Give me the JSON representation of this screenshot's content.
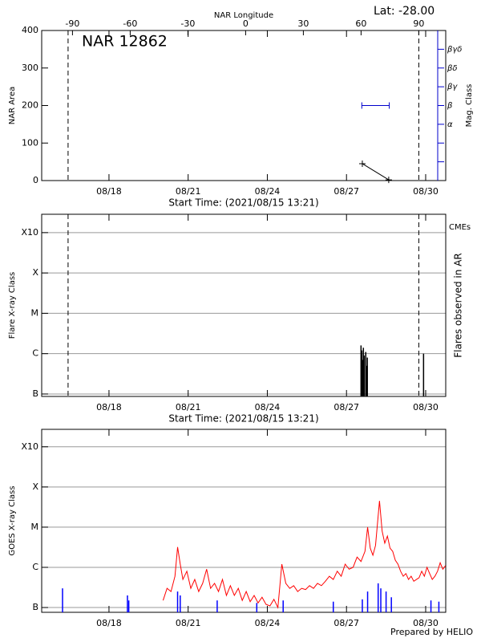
{
  "chart_data": [
    {
      "type": "line",
      "title": "NAR 12862",
      "annotation": "Lat: -28.00",
      "x2label": "NAR Longitude",
      "ylabel": "NAR Area",
      "y2label": "Mag. Class",
      "xlabel": "Start Time: (2021/08/15 13:21)",
      "xlim": [
        15.45,
        30.76
      ],
      "xticks": [
        {
          "value": 18,
          "label": "08/18"
        },
        {
          "value": 21,
          "label": "08/21"
        },
        {
          "value": 24,
          "label": "08/24"
        },
        {
          "value": 27,
          "label": "08/27"
        },
        {
          "value": 30,
          "label": "08/30"
        }
      ],
      "x2lim": [
        -106,
        104
      ],
      "x2ticks": [
        -90,
        -60,
        -30,
        0,
        30,
        60,
        90
      ],
      "ylim": [
        0,
        400
      ],
      "yticks": [
        0,
        100,
        200,
        300,
        400
      ],
      "y2lim": [
        0,
        8
      ],
      "y2color": "#0000cc",
      "y2ticks": [
        {
          "value": 1,
          "label": null
        },
        {
          "value": 2,
          "label": null
        },
        {
          "value": 3,
          "label": "α"
        },
        {
          "value": 4,
          "label": "β"
        },
        {
          "value": 5,
          "label": "βγ"
        },
        {
          "value": 6,
          "label": "βδ"
        },
        {
          "value": 7,
          "label": "βγδ"
        }
      ],
      "vlines": [
        16.45,
        29.74
      ],
      "series": [
        {
          "color": "#000000",
          "x": [
            27.6,
            28.6
          ],
          "values": [
            45,
            2
          ]
        },
        {
          "color": "#0000cc",
          "axis": "y2",
          "x": [
            27.58,
            28.62
          ],
          "values": [
            4,
            4
          ]
        }
      ]
    },
    {
      "type": "bar",
      "annotation": "CMEs",
      "annotation_color": "#ff0000",
      "ylabel": "Flare X-ray Class",
      "y2label": "Flares observed in AR",
      "xlabel": "Start Time: (2021/08/15 13:21)",
      "xlim": [
        15.45,
        30.76
      ],
      "xticks": [
        {
          "value": 18,
          "label": "08/18"
        },
        {
          "value": 21,
          "label": "08/21"
        },
        {
          "value": 24,
          "label": "08/24"
        },
        {
          "value": 27,
          "label": "08/27"
        },
        {
          "value": 30,
          "label": "08/30"
        }
      ],
      "log_y": true,
      "ylim": [
        8.7e-08,
        0.00285
      ],
      "yticks": [
        {
          "value": 1e-07,
          "label": "B"
        },
        {
          "value": 1e-06,
          "label": "C"
        },
        {
          "value": 1e-05,
          "label": "M"
        },
        {
          "value": 0.0001,
          "label": "X"
        },
        {
          "value": 0.001,
          "label": "X10"
        }
      ],
      "grid": true,
      "vlines": [
        16.45,
        29.74
      ],
      "color": "#000000",
      "x": [
        27.55,
        27.58,
        27.61,
        27.64,
        27.67,
        27.73,
        27.76,
        27.79,
        29.92
      ],
      "values": [
        1.6e-06,
        1.2e-06,
        7e-07,
        1.4e-06,
        9e-07,
        1.1e-06,
        5e-07,
        8e-07,
        1e-06
      ]
    },
    {
      "type": "line",
      "ylabel": "GOES X-ray Class",
      "note": "Prepared by HELIO",
      "xlim": [
        15.45,
        30.76
      ],
      "xticks": [
        {
          "value": 18,
          "label": "08/18"
        },
        {
          "value": 21,
          "label": "08/21"
        },
        {
          "value": 24,
          "label": "08/24"
        },
        {
          "value": 27,
          "label": "08/27"
        },
        {
          "value": 30,
          "label": "08/30"
        }
      ],
      "log_y": true,
      "ylim": [
        7.6e-08,
        0.00272
      ],
      "yticks": [
        {
          "value": 1e-07,
          "label": "B"
        },
        {
          "value": 1e-06,
          "label": "C"
        },
        {
          "value": 1e-05,
          "label": "M"
        },
        {
          "value": 0.0001,
          "label": "X"
        },
        {
          "value": 0.001,
          "label": "X10"
        }
      ],
      "grid": true,
      "series": [
        {
          "color": "#ff0000",
          "x": [
            20.05,
            20.2,
            20.35,
            20.5,
            20.6,
            20.7,
            20.8,
            20.95,
            21.1,
            21.25,
            21.4,
            21.55,
            21.7,
            21.85,
            22.0,
            22.15,
            22.3,
            22.45,
            22.6,
            22.75,
            22.9,
            23.05,
            23.2,
            23.35,
            23.5,
            23.65,
            23.8,
            23.95,
            24.1,
            24.25,
            24.4,
            24.55,
            24.7,
            24.85,
            25.0,
            25.15,
            25.3,
            25.45,
            25.6,
            25.75,
            25.9,
            26.05,
            26.2,
            26.35,
            26.5,
            26.65,
            26.8,
            26.95,
            27.1,
            27.25,
            27.4,
            27.55,
            27.7,
            27.8,
            27.9,
            28.0,
            28.1,
            28.25,
            28.35,
            28.45,
            28.55,
            28.65,
            28.75,
            28.85,
            28.95,
            29.05,
            29.15,
            29.25,
            29.35,
            29.45,
            29.55,
            29.65,
            29.75,
            29.85,
            29.95,
            30.05,
            30.15,
            30.25,
            30.35,
            30.45,
            30.55,
            30.65,
            30.75
          ],
          "values": [
            1.5e-07,
            3e-07,
            2.5e-07,
            6e-07,
            3.2e-06,
            1.2e-06,
            5e-07,
            8e-07,
            3e-07,
            5e-07,
            2.5e-07,
            4e-07,
            9e-07,
            3e-07,
            4e-07,
            2.5e-07,
            5e-07,
            2e-07,
            3.5e-07,
            2e-07,
            3e-07,
            1.5e-07,
            2.5e-07,
            1.4e-07,
            2e-07,
            1.3e-07,
            1.8e-07,
            1.2e-07,
            1.1e-07,
            1.6e-07,
            1e-07,
            1.2e-06,
            4e-07,
            3e-07,
            3.5e-07,
            2.5e-07,
            3e-07,
            2.8e-07,
            3.5e-07,
            3e-07,
            4e-07,
            3.5e-07,
            4.5e-07,
            6e-07,
            5e-07,
            8e-07,
            6e-07,
            1.2e-06,
            9e-07,
            1e-06,
            1.8e-06,
            1.4e-06,
            2.5e-06,
            1e-05,
            3e-06,
            2e-06,
            3.5e-06,
            4.5e-05,
            8e-06,
            4e-06,
            6e-06,
            3e-06,
            2.5e-06,
            1.5e-06,
            1.2e-06,
            8e-07,
            6e-07,
            7e-07,
            5e-07,
            6e-07,
            4.5e-07,
            5e-07,
            5.5e-07,
            8e-07,
            6e-07,
            1e-06,
            7e-07,
            5e-07,
            6e-07,
            8e-07,
            1.3e-06,
            9e-07,
            1.1e-06
          ]
        },
        {
          "color": "#0000ff",
          "type": "bar",
          "x": [
            16.24,
            18.7,
            18.75,
            20.6,
            20.7,
            22.1,
            23.6,
            24.6,
            26.5,
            27.6,
            27.8,
            28.2,
            28.3,
            28.5,
            28.7,
            30.2,
            30.5
          ],
          "values": [
            3e-07,
            2e-07,
            1.5e-07,
            2.5e-07,
            2e-07,
            1.5e-07,
            1.3e-07,
            1.5e-07,
            1.4e-07,
            1.6e-07,
            2.5e-07,
            4e-07,
            3e-07,
            2.5e-07,
            1.8e-07,
            1.5e-07,
            1.4e-07
          ]
        }
      ]
    }
  ]
}
